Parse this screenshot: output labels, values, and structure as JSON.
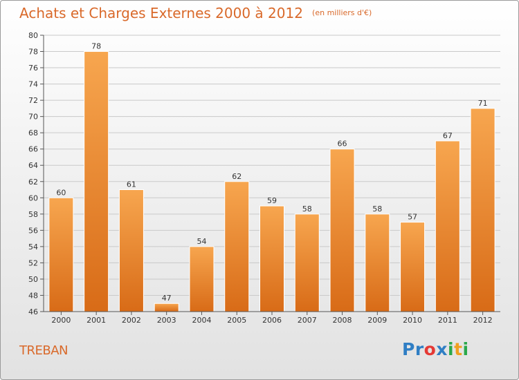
{
  "title": "Achats et Charges Externes 2000 à 2012",
  "unit": "(en milliers d'€)",
  "place": "TREBAN",
  "logo": {
    "text": "Proxiti",
    "letters": [
      "P",
      "r",
      "o",
      "x",
      "i",
      "t",
      "i"
    ],
    "colors": [
      "#2f7ec4",
      "#2f7ec4",
      "#e53935",
      "#2f7ec4",
      "#2aa84a",
      "#f0a020",
      "#2aa84a"
    ]
  },
  "colors": {
    "bar_top": "#f7a64f",
    "bar_bottom": "#d86b17",
    "accent": "#d9692a"
  },
  "chart_data": {
    "type": "bar",
    "title": "Achats et Charges Externes 2000 à 2012",
    "subtitle": "(en milliers d'€)",
    "categories": [
      "2000",
      "2001",
      "2002",
      "2003",
      "2004",
      "2005",
      "2006",
      "2007",
      "2008",
      "2009",
      "2010",
      "2011",
      "2012"
    ],
    "values": [
      60,
      78,
      61,
      47,
      54,
      62,
      59,
      58,
      66,
      58,
      57,
      67,
      71
    ],
    "ylim": [
      46,
      80
    ],
    "yticks": [
      46,
      48,
      50,
      52,
      54,
      56,
      58,
      60,
      62,
      64,
      66,
      68,
      70,
      72,
      74,
      76,
      78,
      80
    ],
    "grid": true,
    "data_labels": true
  }
}
